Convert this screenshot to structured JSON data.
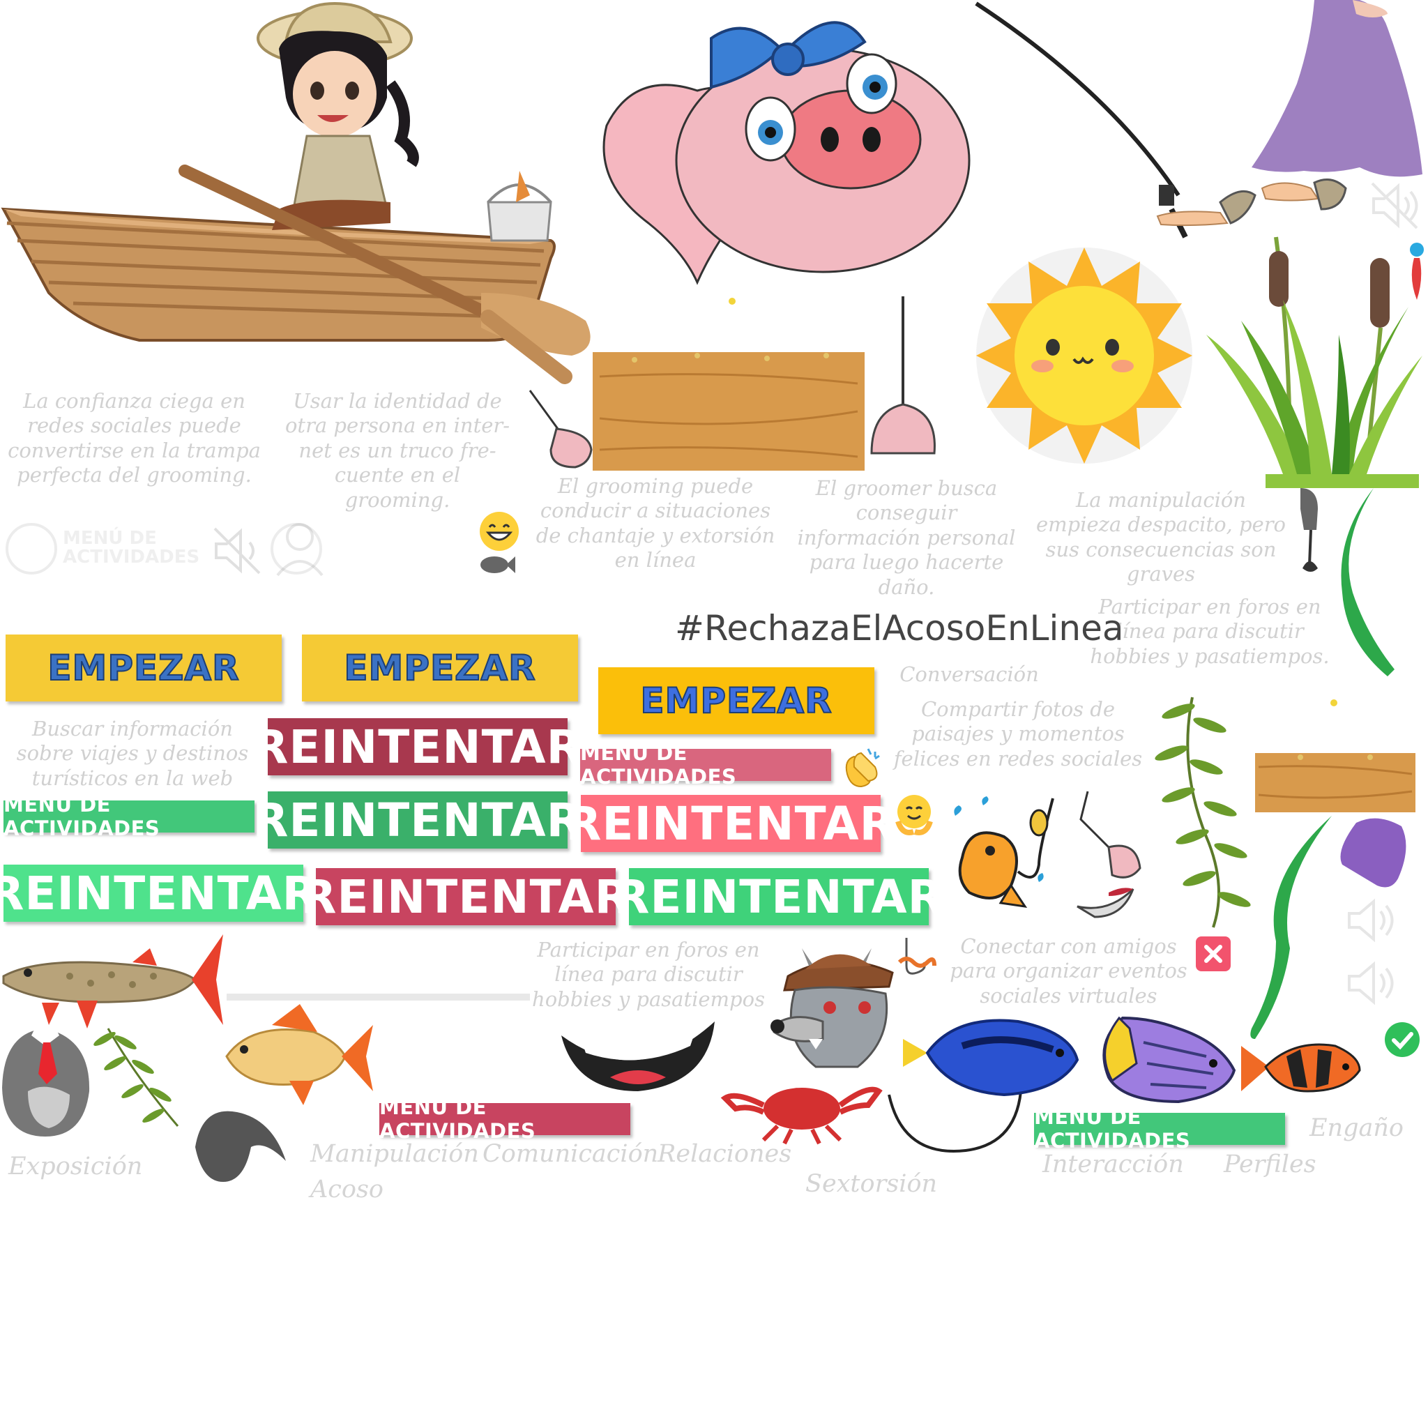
{
  "captions": {
    "c1": "La confianza ciega en redes sociales puede convertirse en la trampa perfecta del grooming.",
    "c2": "Usar la identidad de otra persona en inter- net es un truco fre- cuente en el grooming.",
    "c3": "El grooming puede conducir a situaciones de chantaje y extorsión en línea",
    "c4": "El groomer busca conseguir información personal para luego hacerte daño.",
    "c5": "La manipulación empieza despacito, pero sus consecuencias son graves",
    "c6": "Participar en foros en línea para discutir hobbies y pasatiempos.",
    "c7": "Buscar información sobre viajes y destinos turísticos en la web",
    "c8": "Compartir fotos de paisajes y momentos felices en redes sociales",
    "c9": "Participar en foros en línea para discutir hobbies y pasatiempos",
    "c10": "Conectar con amigos para organizar eventos sociales virtuales",
    "c11": "Conversación"
  },
  "hashtag": "#RechazaElAcosoEnLinea",
  "menu_faded": "MENÚ DE ACTIVIDADES",
  "buttons": {
    "start": "EMPEZAR",
    "retry": "REINTENTAR",
    "menu": "MENÚ DE ACTIVIDADES"
  },
  "labels": {
    "exposicion": "Exposición",
    "manipulacion": "Manipulación",
    "acoso": "Acoso",
    "comunicacion": "Comunicación",
    "relaciones": "Relaciones",
    "sextorsion": "Sextorsión",
    "interaccion": "Interacción",
    "perfiles": "Perfiles",
    "engano": "Engaño"
  },
  "colors": {
    "start_yellow": "#f5ca35",
    "retry_dark_red": "#a8384e",
    "retry_green": "#3ab06a",
    "retry_pink": "#ff6f7f",
    "retry_light_green": "#4fe28c",
    "menu_pink": "#d9667e",
    "menu_green": "#42c77a"
  },
  "icons": [
    "muted-speaker-icon",
    "speaker-icon",
    "close-icon",
    "check-icon",
    "grin-emoji-icon",
    "clap-emoji-icon",
    "hug-emoji-icon"
  ]
}
